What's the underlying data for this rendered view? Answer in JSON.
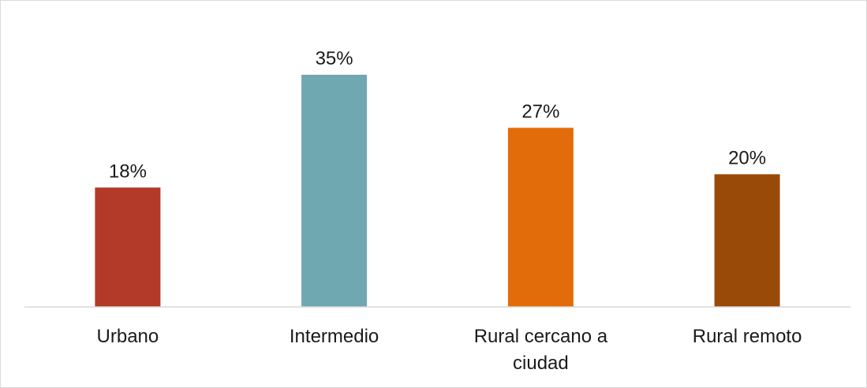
{
  "chart_data": {
    "type": "bar",
    "categories": [
      "Urbano",
      "Intermedio",
      "Rural cercano a ciudad",
      "Rural remoto"
    ],
    "category_lines": [
      [
        "Urbano"
      ],
      [
        "Intermedio"
      ],
      [
        "Rural cercano a",
        "ciudad"
      ],
      [
        "Rural remoto"
      ]
    ],
    "values": [
      18,
      35,
      27,
      20
    ],
    "value_labels": [
      "18%",
      "35%",
      "27%",
      "20%"
    ],
    "colors": [
      "#b33a28",
      "#6fa8b0",
      "#e36c0a",
      "#9a4a08"
    ],
    "unit": "%",
    "ylim": [
      0,
      35
    ],
    "grid": false,
    "legend": "none",
    "title": "",
    "xlabel": "",
    "ylabel": ""
  }
}
